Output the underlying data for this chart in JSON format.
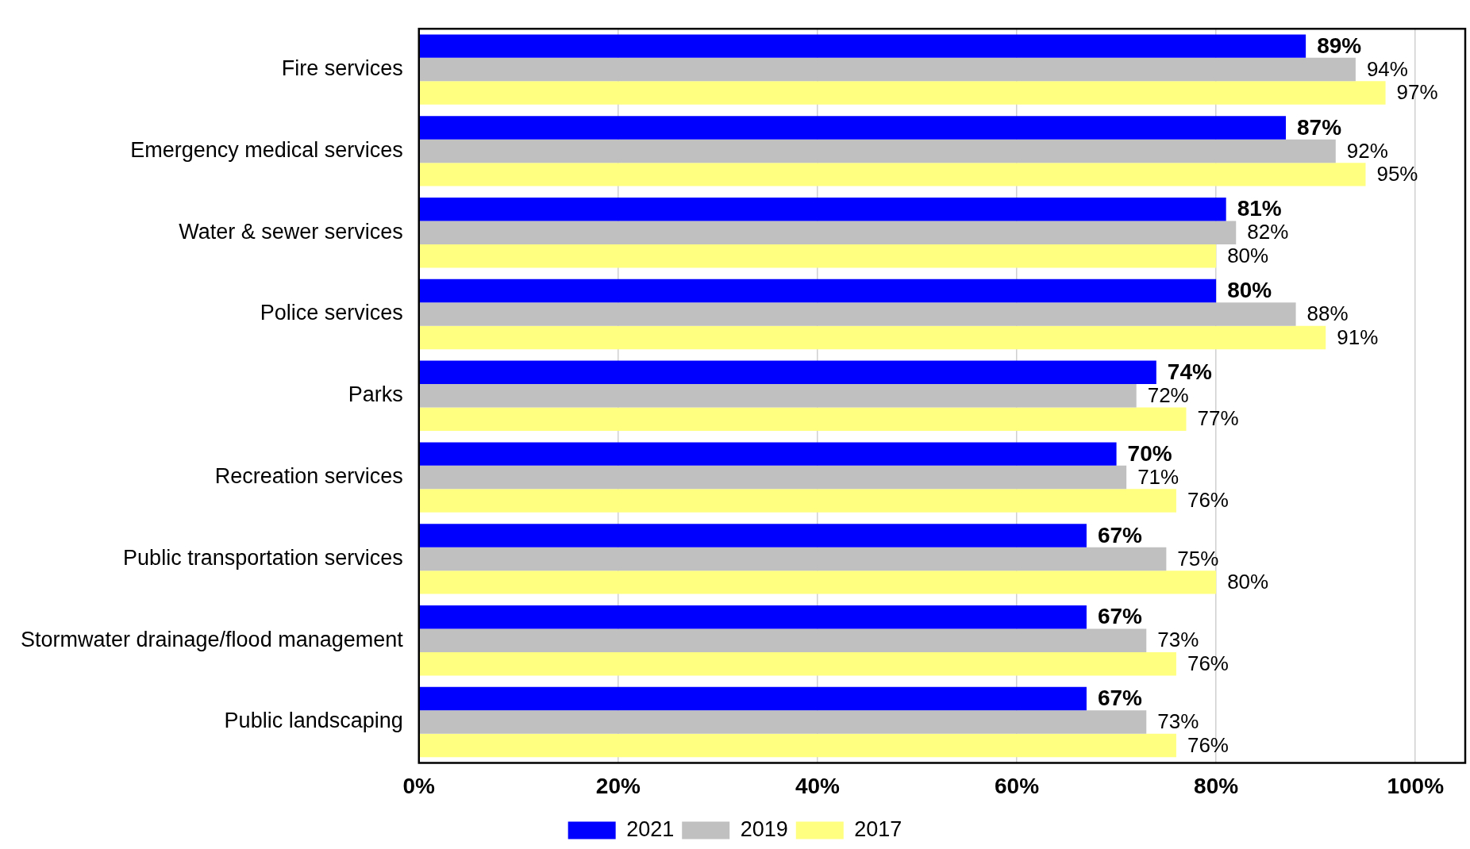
{
  "chart_data": {
    "type": "bar",
    "orientation": "horizontal",
    "categories": [
      "Fire services",
      "Emergency medical services",
      "Water & sewer services",
      "Police services",
      "Parks",
      "Recreation services",
      "Public transportation services",
      "Stormwater drainage/flood management",
      "Public landscaping"
    ],
    "series": [
      {
        "name": "2021",
        "color": "#0000ff",
        "values": [
          89,
          87,
          81,
          80,
          74,
          70,
          67,
          67,
          67
        ],
        "value_labels": [
          "89%",
          "87%",
          "81%",
          "80%",
          "74%",
          "70%",
          "67%",
          "67%",
          "67%"
        ]
      },
      {
        "name": "2019",
        "color": "#c0c0c0",
        "values": [
          94,
          92,
          82,
          88,
          72,
          71,
          75,
          73,
          73
        ],
        "value_labels": [
          "94%",
          "92%",
          "82%",
          "88%",
          "72%",
          "71%",
          "75%",
          "73%",
          "73%"
        ]
      },
      {
        "name": "2017",
        "color": "#ffff80",
        "values": [
          97,
          95,
          80,
          91,
          77,
          76,
          80,
          76,
          76
        ],
        "value_labels": [
          "97%",
          "95%",
          "80%",
          "91%",
          "77%",
          "76%",
          "80%",
          "76%",
          "76%"
        ]
      }
    ],
    "xlim": [
      0,
      105
    ],
    "xticks": [
      {
        "value": 0,
        "label": "0%"
      },
      {
        "value": 20,
        "label": "20%"
      },
      {
        "value": 40,
        "label": "40%"
      },
      {
        "value": 60,
        "label": "60%"
      },
      {
        "value": 80,
        "label": "80%"
      },
      {
        "value": 100,
        "label": "100%"
      }
    ],
    "grid": "x",
    "legend": "bottom"
  }
}
